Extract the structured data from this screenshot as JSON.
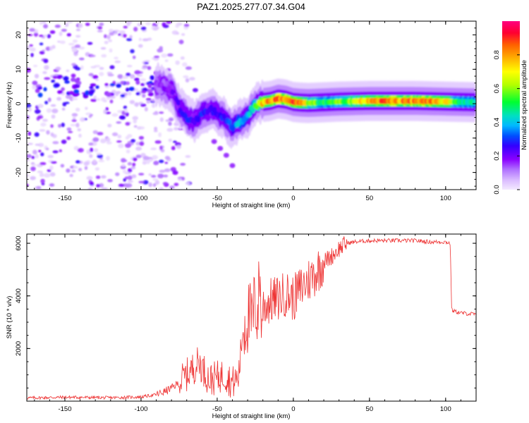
{
  "figure_title": "PAZ1.2025.277.07.34.G04",
  "colors": {
    "snr_line": "#ee3333",
    "axis": "#000000",
    "colormap": [
      "#f4eaff",
      "#d8b8ff",
      "#b070ff",
      "#8a00ff",
      "#3300ff",
      "#0050ff",
      "#00b8ff",
      "#00e0c0",
      "#00ff30",
      "#b0ff00",
      "#ffff00",
      "#ffb000",
      "#ff6000",
      "#ff0030",
      "#ff0080"
    ]
  },
  "chart_data": [
    {
      "type": "heatmap",
      "title": "",
      "xlabel": "Height of straight line (km)",
      "ylabel": "Frequency (Hz)",
      "xlim": [
        -175,
        120
      ],
      "ylim": [
        -25,
        24
      ],
      "xticks": [
        -150,
        -100,
        -50,
        0,
        50,
        100
      ],
      "yticks": [
        -20,
        -10,
        0,
        10,
        20
      ],
      "colorbar": {
        "label": "Normalized spectral amplitude",
        "range": [
          0.0,
          1.0
        ],
        "ticks": [
          "0.0",
          "0.2",
          "0.4",
          "0.6",
          "0.8"
        ]
      },
      "ridge": {
        "description": "Dominant frequency track vs height",
        "x": [
          -90,
          -80,
          -75,
          -70,
          -65,
          -60,
          -55,
          -50,
          -45,
          -40,
          -35,
          -30,
          -28,
          -25,
          -20,
          -15,
          -10,
          -5,
          0,
          5,
          10,
          20,
          30,
          40,
          50,
          60,
          70,
          80,
          90,
          100,
          110,
          120
        ],
        "y": [
          5.5,
          4.0,
          -1.0,
          -4.0,
          -5.0,
          -3.0,
          -1.5,
          -2.5,
          -4.5,
          -7.0,
          -5.0,
          -4.0,
          -2.0,
          -0.5,
          0.5,
          0.8,
          1.5,
          1.2,
          0.5,
          0.3,
          0.2,
          0.4,
          0.6,
          0.7,
          0.8,
          0.8,
          0.8,
          0.8,
          0.7,
          0.6,
          0.5,
          0.4
        ],
        "amplitude": [
          0.2,
          0.25,
          0.3,
          0.35,
          0.3,
          0.35,
          0.3,
          0.3,
          0.35,
          0.4,
          0.5,
          0.45,
          0.55,
          0.65,
          0.85,
          0.9,
          0.95,
          0.9,
          0.95,
          0.9,
          0.7,
          0.6,
          0.65,
          0.75,
          0.85,
          0.95,
          0.9,
          0.92,
          0.88,
          0.8,
          0.6,
          0.55
        ]
      },
      "secondary_track": {
        "x": [
          -52,
          -48,
          -44,
          -40
        ],
        "y": [
          -11,
          -13,
          -15,
          -18
        ]
      },
      "noise_region_x": [
        -175,
        -85
      ]
    },
    {
      "type": "line",
      "title": "",
      "xlabel": "Height of straight line (km)",
      "ylabel": "SNR (10 * v/v)",
      "xlim": [
        -175,
        120
      ],
      "ylim": [
        0,
        6350
      ],
      "xticks": [
        -150,
        -100,
        -50,
        0,
        50,
        100
      ],
      "yticks": [
        2000,
        4000,
        6000
      ],
      "series": [
        {
          "name": "SNR",
          "x": [
            -175,
            -150,
            -120,
            -100,
            -90,
            -85,
            -80,
            -75,
            -70,
            -65,
            -62,
            -58,
            -55,
            -50,
            -45,
            -40,
            -36,
            -33,
            -30,
            -27,
            -25,
            -22,
            -20,
            -15,
            -10,
            -5,
            0,
            5,
            10,
            15,
            20,
            25,
            30,
            35,
            40,
            50,
            60,
            70,
            80,
            90,
            100,
            103,
            104,
            110,
            120
          ],
          "y": [
            120,
            150,
            130,
            160,
            250,
            350,
            500,
            700,
            1000,
            1300,
            1500,
            1100,
            800,
            900,
            1000,
            700,
            900,
            2800,
            3200,
            3000,
            3800,
            2800,
            3600,
            3800,
            3900,
            4100,
            3900,
            4300,
            4600,
            4900,
            5300,
            5500,
            5800,
            6000,
            6050,
            6100,
            6100,
            6100,
            6100,
            6050,
            6050,
            6000,
            3450,
            3350,
            3300
          ]
        }
      ]
    }
  ]
}
